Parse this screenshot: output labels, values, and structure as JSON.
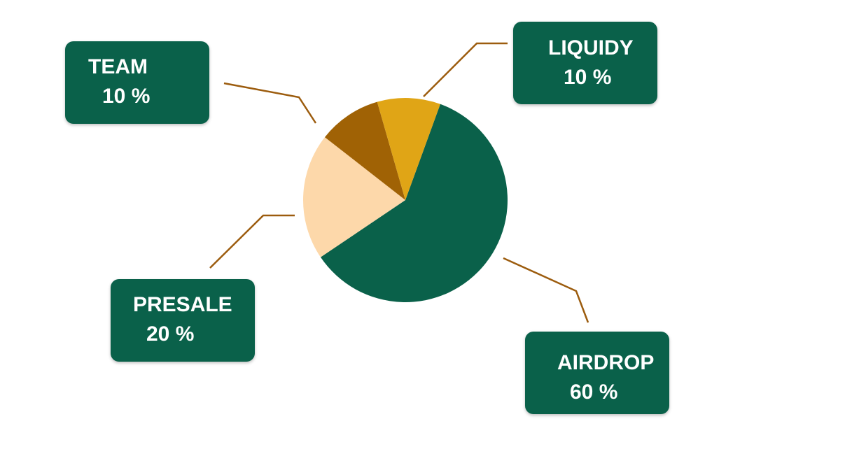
{
  "chart_data": {
    "type": "pie",
    "categories": [
      "AIRDROP",
      "PRESALE",
      "TEAM",
      "LIQUIDY"
    ],
    "values": [
      60,
      20,
      10,
      10
    ],
    "value_labels": [
      "60 %",
      "20 %",
      "10 %",
      "10 %"
    ],
    "colors": [
      "#0a614a",
      "#fdd8aa",
      "#a06205",
      "#e0a516"
    ],
    "leader_line_color": "#9c5c0e",
    "label_box_color": "#0a614a",
    "title": "",
    "legend": "none"
  }
}
